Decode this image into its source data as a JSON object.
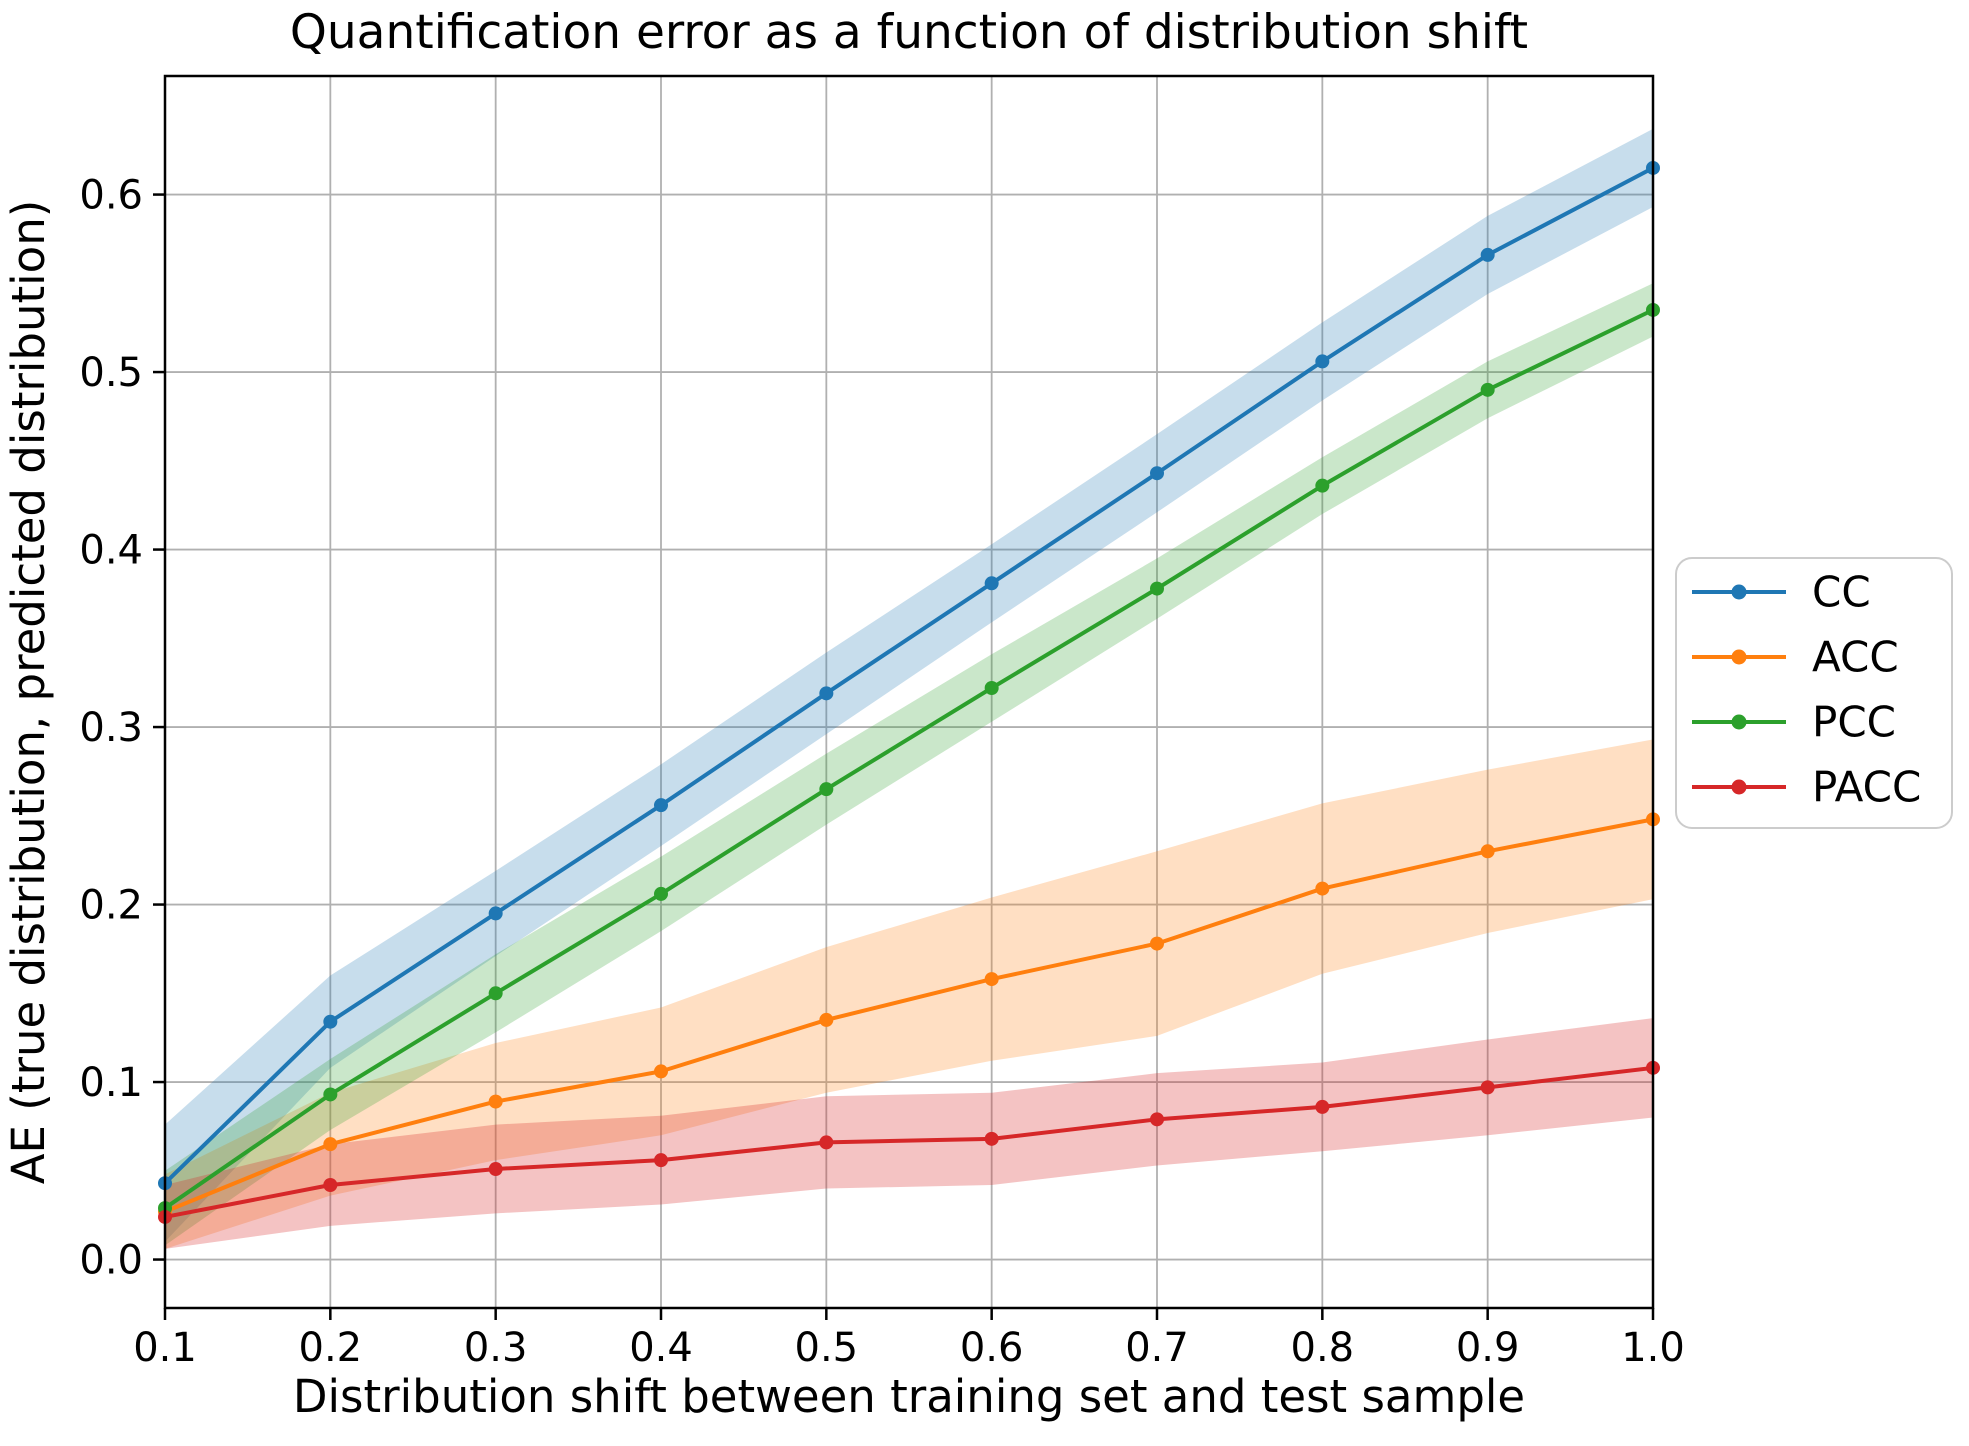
{
  "figure": {
    "title": "Quantification error as a function of distribution shift",
    "xlabel": "Distribution shift between training set and test sample",
    "ylabel": "AE (true distribution, predicted distribution)",
    "background_color": "#ffffff",
    "grid_color": "#b0b0b0",
    "spine_color": "#000000",
    "legend_border_color": "#cccccc"
  },
  "chart_data": {
    "type": "line",
    "title": "Quantification error as a function of distribution shift",
    "xlabel": "Distribution shift between training set and test sample",
    "ylabel": "AE (true distribution, predicted distribution)",
    "x": [
      0.1,
      0.2,
      0.3,
      0.4,
      0.5,
      0.6,
      0.7,
      0.8,
      0.9,
      1.0
    ],
    "x_tick_labels": [
      "0.1",
      "0.2",
      "0.3",
      "0.4",
      "0.5",
      "0.6",
      "0.7",
      "0.8",
      "0.9",
      "1.0"
    ],
    "y_ticks": [
      0.0,
      0.1,
      0.2,
      0.3,
      0.4,
      0.5,
      0.6
    ],
    "y_tick_labels": [
      "0.0",
      "0.1",
      "0.2",
      "0.3",
      "0.4",
      "0.5",
      "0.6"
    ],
    "xlim": [
      0.1,
      1.0
    ],
    "ylim": [
      -0.0273,
      0.6668
    ],
    "grid": true,
    "legend_position": "center right, outside axes",
    "series": [
      {
        "name": "CC",
        "color": "#1f77b4",
        "values": [
          0.043,
          0.134,
          0.195,
          0.256,
          0.319,
          0.381,
          0.443,
          0.506,
          0.566,
          0.615
        ],
        "band_lower": [
          0.01,
          0.108,
          0.171,
          0.233,
          0.296,
          0.359,
          0.421,
          0.484,
          0.544,
          0.593
        ],
        "band_upper": [
          0.076,
          0.16,
          0.219,
          0.279,
          0.342,
          0.403,
          0.465,
          0.528,
          0.588,
          0.637
        ],
        "band_opacity": 0.25
      },
      {
        "name": "ACC",
        "color": "#ff7f0e",
        "values": [
          0.027,
          0.065,
          0.089,
          0.106,
          0.135,
          0.158,
          0.178,
          0.209,
          0.23,
          0.248
        ],
        "band_lower": [
          0.006,
          0.036,
          0.056,
          0.07,
          0.094,
          0.112,
          0.126,
          0.161,
          0.184,
          0.203
        ],
        "band_upper": [
          0.048,
          0.094,
          0.122,
          0.142,
          0.176,
          0.204,
          0.23,
          0.257,
          0.276,
          0.293
        ],
        "band_opacity": 0.25
      },
      {
        "name": "PCC",
        "color": "#2ca02c",
        "values": [
          0.029,
          0.093,
          0.15,
          0.206,
          0.265,
          0.322,
          0.378,
          0.436,
          0.49,
          0.535
        ],
        "band_lower": [
          0.008,
          0.073,
          0.128,
          0.185,
          0.245,
          0.303,
          0.361,
          0.42,
          0.474,
          0.52
        ],
        "band_upper": [
          0.05,
          0.113,
          0.172,
          0.227,
          0.285,
          0.341,
          0.395,
          0.452,
          0.506,
          0.55
        ],
        "band_opacity": 0.25
      },
      {
        "name": "PACC",
        "color": "#d62728",
        "values": [
          0.024,
          0.042,
          0.051,
          0.056,
          0.066,
          0.068,
          0.079,
          0.086,
          0.097,
          0.108
        ],
        "band_lower": [
          0.006,
          0.019,
          0.026,
          0.031,
          0.04,
          0.042,
          0.053,
          0.061,
          0.07,
          0.08
        ],
        "band_upper": [
          0.042,
          0.065,
          0.076,
          0.081,
          0.092,
          0.094,
          0.105,
          0.111,
          0.124,
          0.136
        ],
        "band_opacity": 0.28
      }
    ]
  }
}
